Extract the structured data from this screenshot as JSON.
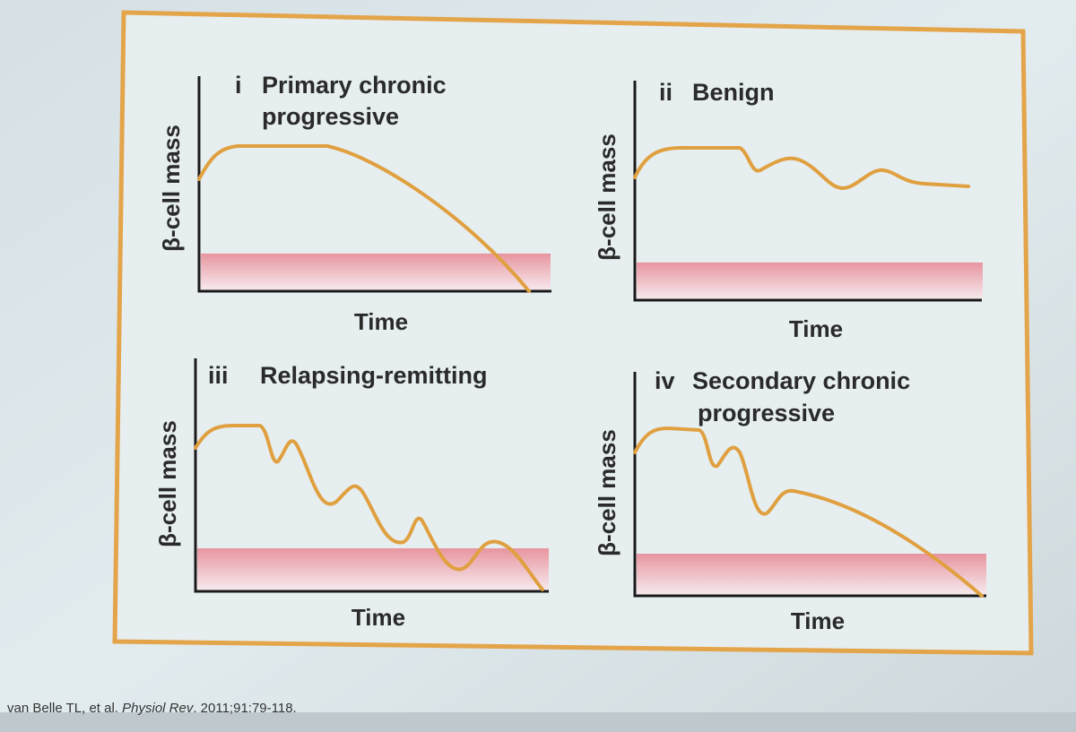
{
  "panels": [
    {
      "numeral": "i",
      "title": [
        "Primary chronic",
        "progressive"
      ],
      "y_label": "β-cell mass",
      "x_label": "Time"
    },
    {
      "numeral": "ii",
      "title": [
        "Benign"
      ],
      "y_label": "β-cell mass",
      "x_label": "Time"
    },
    {
      "numeral": "iii",
      "title": [
        "Relapsing-remitting"
      ],
      "y_label": "β-cell mass",
      "x_label": "Time"
    },
    {
      "numeral": "iv",
      "title": [
        "Secondary chronic",
        "progressive"
      ],
      "y_label": "β-cell mass",
      "x_label": "Time"
    }
  ],
  "citation": {
    "authors": "van Belle TL, et al.",
    "journal": "Physiol Rev",
    "details": ". 2011;91:79-118."
  }
}
